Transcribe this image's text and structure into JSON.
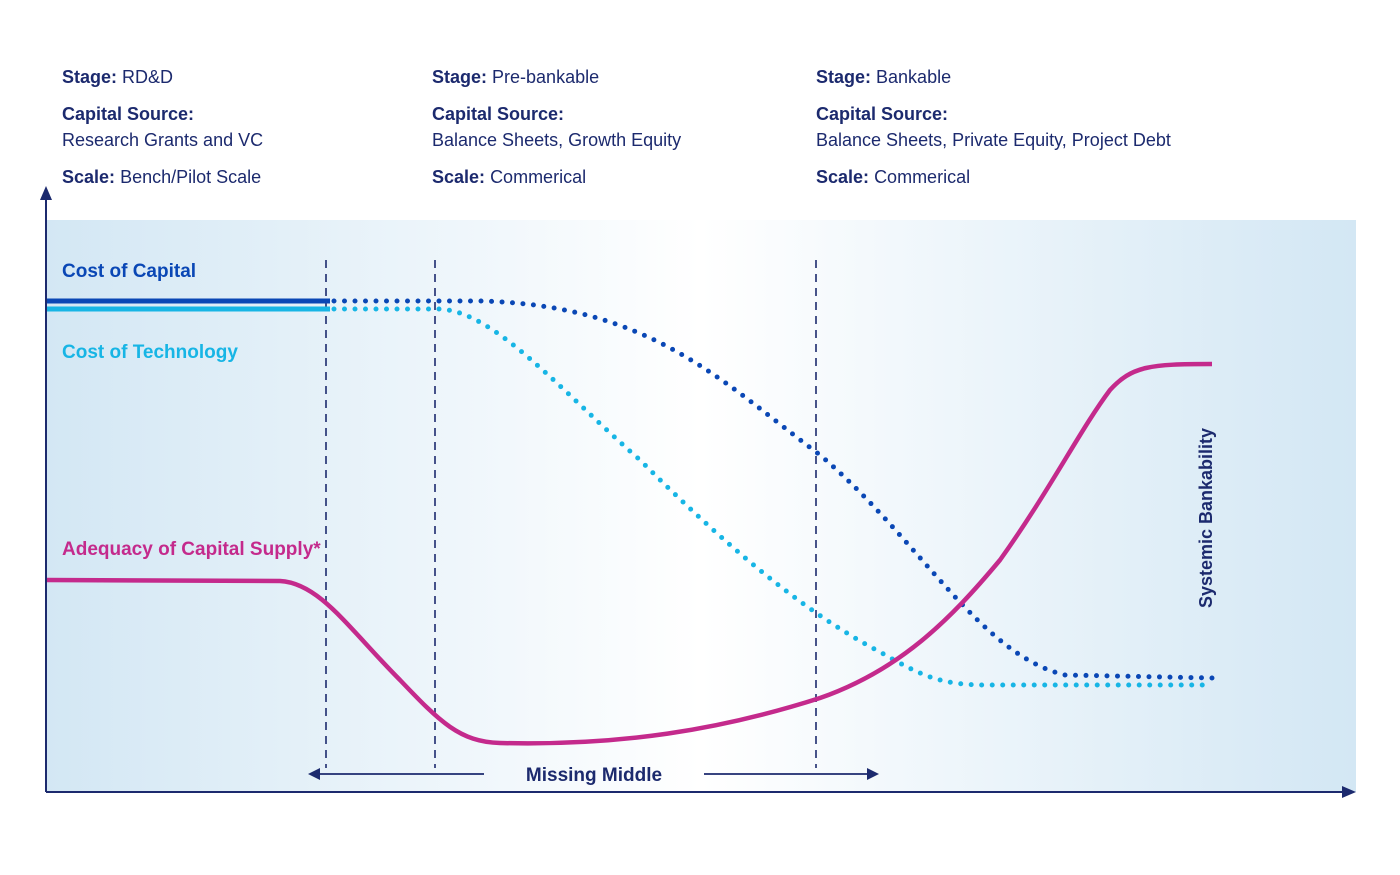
{
  "stages": [
    {
      "stage_label": "Stage:",
      "stage": "RD&D",
      "capital_label": "Capital Source:",
      "capital": "Research Grants and VC",
      "scale_label": "Scale:",
      "scale": "Bench/Pilot Scale"
    },
    {
      "stage_label": "Stage:",
      "stage": "Pre-bankable",
      "capital_label": "Capital Source:",
      "capital": "Balance Sheets, Growth Equity",
      "scale_label": "Scale:",
      "scale": "Commerical"
    },
    {
      "stage_label": "Stage:",
      "stage": "Bankable",
      "capital_label": "Capital Source:",
      "capital": "Balance Sheets, Private Equity, Project Debt",
      "scale_label": "Scale:",
      "scale": "Commerical"
    }
  ],
  "series": {
    "cost_of_capital": {
      "label": "Cost of Capital",
      "color": "#0a47b5"
    },
    "cost_of_technology": {
      "label": "Cost of Technology",
      "color": "#17b5e5"
    },
    "adequacy": {
      "label": "Adequacy of Capital Supply*",
      "color": "#c42a8c"
    }
  },
  "missing_middle": "Missing Middle",
  "systemic_bankability": "Systemic Bankability",
  "colors": {
    "navy": "#1c2a6e",
    "bg_light": "#d3e7f4"
  }
}
